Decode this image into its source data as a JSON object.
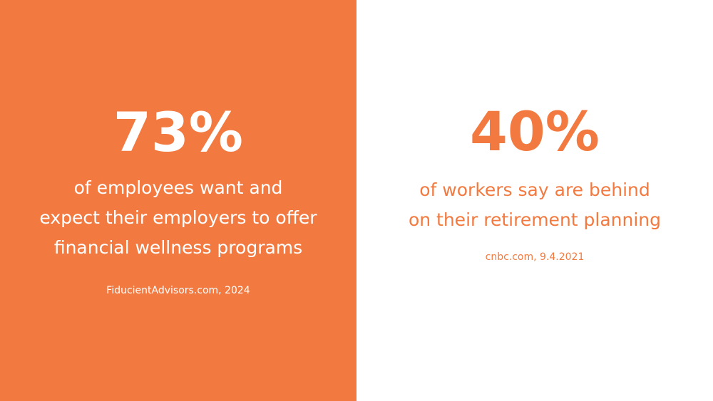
{
  "colors": {
    "accent": "#f27a40",
    "background": "#ffffff",
    "text_on_accent": "#ffffff"
  },
  "stats": [
    {
      "value": "73%",
      "lines": [
        "of employees want and",
        "expect their employers to offer",
        "financial wellness programs"
      ],
      "source": "FiducientAdvisors.com, 2024"
    },
    {
      "value": "40%",
      "lines": [
        "of workers say are behind",
        "on their retirement planning"
      ],
      "source": "cnbc.com, 9.4.2021"
    }
  ]
}
